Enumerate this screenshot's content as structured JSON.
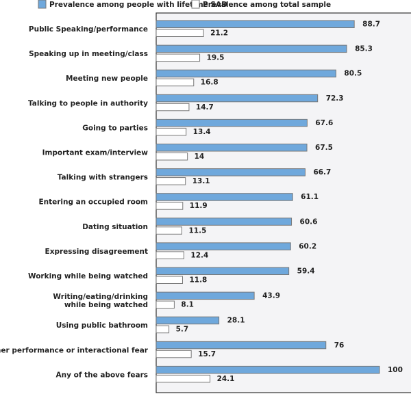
{
  "chart_data": {
    "type": "bar",
    "orientation": "horizontal",
    "title": "",
    "xlabel": "",
    "ylabel": "",
    "xlim": [
      0,
      100
    ],
    "grid": false,
    "legend_position": "top",
    "categories": [
      "Public Speaking/performance",
      "Speaking up in meeting/class",
      "Meeting new people",
      "Talking to people in authority",
      "Going to parties",
      "Important exam/interview",
      "Talking with strangers",
      "Entering an occupied room",
      "Dating situation",
      "Expressing disagreement",
      "Working while being watched",
      "Writing/eating/drinking\nwhile being watched",
      "Using public bathroom",
      "Other performance or interactional fear",
      "Any of the above fears"
    ],
    "series": [
      {
        "name": "Prevalence among people with lifetime SAD",
        "color": "#6fa8dc",
        "values": [
          88.7,
          85.3,
          80.5,
          72.3,
          67.6,
          67.5,
          66.7,
          61.1,
          60.6,
          60.2,
          59.4,
          43.9,
          28.1,
          76,
          100
        ]
      },
      {
        "name": "Prevalence among total sample",
        "color": "#ffffff",
        "values": [
          21.2,
          19.5,
          16.8,
          14.7,
          13.4,
          14,
          13.1,
          11.9,
          11.5,
          12.4,
          11.8,
          8.1,
          5.7,
          15.7,
          24.1
        ]
      }
    ]
  }
}
